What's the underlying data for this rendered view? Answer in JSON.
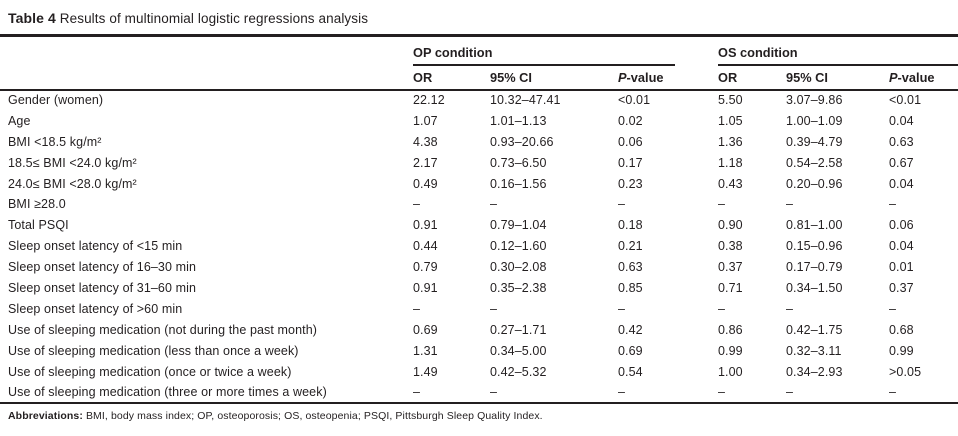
{
  "title": {
    "label": "Table 4",
    "text": "Results of multinomial logistic regressions analysis"
  },
  "columns": {
    "group_op": "OP condition",
    "group_os": "OS condition",
    "or": "OR",
    "ci": "95% CI",
    "p_italic": "P",
    "p_rest": "-value"
  },
  "rows": [
    {
      "label": "Gender (women)",
      "op": {
        "or": "22.12",
        "ci": "10.32–47.41",
        "p": "<0.01"
      },
      "os": {
        "or": "5.50",
        "ci": "3.07–9.86",
        "p": "<0.01"
      }
    },
    {
      "label": "Age",
      "op": {
        "or": "1.07",
        "ci": "1.01–1.13",
        "p": "0.02"
      },
      "os": {
        "or": "1.05",
        "ci": "1.00–1.09",
        "p": "0.04"
      }
    },
    {
      "label": "BMI <18.5 kg/m²",
      "op": {
        "or": "4.38",
        "ci": "0.93–20.66",
        "p": "0.06"
      },
      "os": {
        "or": "1.36",
        "ci": "0.39–4.79",
        "p": "0.63"
      }
    },
    {
      "label": "18.5≤ BMI <24.0 kg/m²",
      "op": {
        "or": "2.17",
        "ci": "0.73–6.50",
        "p": "0.17"
      },
      "os": {
        "or": "1.18",
        "ci": "0.54–2.58",
        "p": "0.67"
      }
    },
    {
      "label": "24.0≤ BMI <28.0 kg/m²",
      "op": {
        "or": "0.49",
        "ci": "0.16–1.56",
        "p": "0.23"
      },
      "os": {
        "or": "0.43",
        "ci": "0.20–0.96",
        "p": "0.04"
      }
    },
    {
      "label": "BMI ≥28.0",
      "op": {
        "or": "–",
        "ci": "–",
        "p": "–"
      },
      "os": {
        "or": "–",
        "ci": "–",
        "p": "–"
      }
    },
    {
      "label": "Total PSQI",
      "op": {
        "or": "0.91",
        "ci": "0.79–1.04",
        "p": "0.18"
      },
      "os": {
        "or": "0.90",
        "ci": "0.81–1.00",
        "p": "0.06"
      }
    },
    {
      "label": "Sleep onset latency of <15 min",
      "op": {
        "or": "0.44",
        "ci": "0.12–1.60",
        "p": "0.21"
      },
      "os": {
        "or": "0.38",
        "ci": "0.15–0.96",
        "p": "0.04"
      }
    },
    {
      "label": "Sleep onset latency of 16–30 min",
      "op": {
        "or": "0.79",
        "ci": "0.30–2.08",
        "p": "0.63"
      },
      "os": {
        "or": "0.37",
        "ci": "0.17–0.79",
        "p": "0.01"
      }
    },
    {
      "label": "Sleep onset latency of 31–60 min",
      "op": {
        "or": "0.91",
        "ci": "0.35–2.38",
        "p": "0.85"
      },
      "os": {
        "or": "0.71",
        "ci": "0.34–1.50",
        "p": "0.37"
      }
    },
    {
      "label": "Sleep onset latency of >60 min",
      "op": {
        "or": "–",
        "ci": "–",
        "p": "–"
      },
      "os": {
        "or": "–",
        "ci": "–",
        "p": "–"
      }
    },
    {
      "label": "Use of sleeping medication (not during the past month)",
      "op": {
        "or": "0.69",
        "ci": "0.27–1.71",
        "p": "0.42"
      },
      "os": {
        "or": "0.86",
        "ci": "0.42–1.75",
        "p": "0.68"
      }
    },
    {
      "label": "Use of sleeping medication (less than once a week)",
      "op": {
        "or": "1.31",
        "ci": "0.34–5.00",
        "p": "0.69"
      },
      "os": {
        "or": "0.99",
        "ci": "0.32–3.11",
        "p": "0.99"
      }
    },
    {
      "label": "Use of sleeping medication (once or twice a week)",
      "op": {
        "or": "1.49",
        "ci": "0.42–5.32",
        "p": "0.54"
      },
      "os": {
        "or": "1.00",
        "ci": "0.34–2.93",
        "p": ">0.05"
      }
    },
    {
      "label": "Use of sleeping medication (three or more times a week)",
      "op": {
        "or": "–",
        "ci": "–",
        "p": "–"
      },
      "os": {
        "or": "–",
        "ci": "–",
        "p": "–"
      }
    }
  ],
  "footer": {
    "label": "Abbreviations:",
    "text": " BMI, body mass index; OP, osteoporosis; OS, osteopenia; PSQI, Pittsburgh Sleep Quality Index."
  },
  "colors": {
    "text": "#231f20",
    "rule": "#231f20",
    "background": "#ffffff"
  }
}
